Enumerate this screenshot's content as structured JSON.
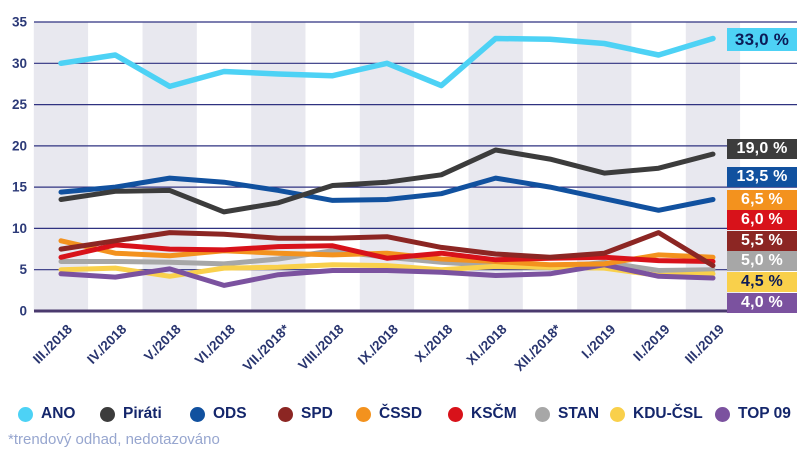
{
  "chart_data": {
    "type": "line",
    "title": "",
    "xlabel": "",
    "ylabel": "",
    "x_labels": [
      "III./2018",
      "IV./2018",
      "V./2018",
      "VI./2018",
      "VII./2018*",
      "VIII./2018",
      "IX./2018",
      "X./2018",
      "XI./2018",
      "XII./2018*",
      "I./2019",
      "II./2019",
      "III./2019"
    ],
    "y_ticks": [
      "0",
      "5",
      "10",
      "15",
      "20",
      "25",
      "30",
      "35"
    ],
    "ylim": [
      0,
      35
    ],
    "grid": "horizontal",
    "legend_position": "bottom",
    "series": [
      {
        "name": "ANO",
        "color": "#4dd2f5",
        "values": [
          30.0,
          31.0,
          27.2,
          29.0,
          28.7,
          28.5,
          30.0,
          27.3,
          33.0,
          32.9,
          32.4,
          31.0,
          33.0
        ],
        "end_label": {
          "text": "33,0 %",
          "bg": "#4dd2f5",
          "fg": "#0c1b57"
        }
      },
      {
        "name": "Piráti",
        "color": "#3c3c3c",
        "values": [
          13.5,
          14.5,
          14.6,
          12.0,
          13.1,
          15.2,
          15.6,
          16.5,
          19.5,
          18.4,
          16.7,
          17.3,
          19.0
        ],
        "end_label": {
          "text": "19,0 %",
          "bg": "#3c3c3c",
          "fg": "#ffffff"
        }
      },
      {
        "name": "ODS",
        "color": "#11519f",
        "values": [
          14.4,
          15.0,
          16.1,
          15.6,
          14.6,
          13.4,
          13.5,
          14.2,
          16.1,
          15.0,
          13.6,
          12.2,
          13.5
        ],
        "end_label": {
          "text": "13,5 %",
          "bg": "#11519f",
          "fg": "#ffffff"
        }
      },
      {
        "name": "SPD",
        "color": "#8c2623",
        "values": [
          7.5,
          8.5,
          9.5,
          9.3,
          8.8,
          8.8,
          9.0,
          7.7,
          6.9,
          6.5,
          7.0,
          9.5,
          5.5
        ],
        "end_label": {
          "text": "5,5 %",
          "bg": "#8c2623",
          "fg": "#ffffff"
        }
      },
      {
        "name": "ČSSD",
        "color": "#f3921e",
        "values": [
          8.5,
          7.0,
          6.7,
          7.3,
          7.0,
          6.8,
          7.0,
          6.3,
          6.0,
          5.6,
          5.7,
          6.8,
          6.5
        ],
        "end_label": {
          "text": "6,5 %",
          "bg": "#f3921e",
          "fg": "#ffffff"
        }
      },
      {
        "name": "KSČM",
        "color": "#d8121a",
        "values": [
          6.5,
          8.0,
          7.5,
          7.4,
          7.8,
          7.9,
          6.4,
          7.0,
          6.2,
          6.4,
          6.5,
          6.1,
          6.0
        ],
        "end_label": {
          "text": "6,0 %",
          "bg": "#d8121a",
          "fg": "#ffffff"
        }
      },
      {
        "name": "STAN",
        "color": "#a7a7a7",
        "values": [
          6.0,
          6.0,
          5.9,
          5.7,
          6.3,
          7.3,
          6.5,
          5.9,
          5.5,
          5.2,
          5.9,
          4.9,
          5.0
        ],
        "end_label": {
          "text": "5,0 %",
          "bg": "#a7a7a7",
          "fg": "#ffffff"
        }
      },
      {
        "name": "KDU-ČSL",
        "color": "#f9d04b",
        "values": [
          5.0,
          5.2,
          4.2,
          5.2,
          5.3,
          5.6,
          5.5,
          5.0,
          5.4,
          5.3,
          5.2,
          4.3,
          4.5
        ],
        "end_label": {
          "text": "4,5 %",
          "bg": "#f9d04b",
          "fg": "#0c1b57"
        }
      },
      {
        "name": "TOP 09",
        "color": "#7b529f",
        "values": [
          4.5,
          4.1,
          5.1,
          3.1,
          4.4,
          4.9,
          4.9,
          4.7,
          4.3,
          4.5,
          5.6,
          4.2,
          4.0
        ],
        "end_label": {
          "text": "4,0 %",
          "bg": "#7b529f",
          "fg": "#ffffff"
        }
      }
    ],
    "colors": {
      "band": "#e8e8ef",
      "grid": "#2f3280",
      "baseline": "#4a3a6e",
      "axis_text": "#2c3a78",
      "legend_text": "#14266b"
    }
  },
  "footnote": {
    "text": "*trendový odhad, nedotazováno"
  }
}
